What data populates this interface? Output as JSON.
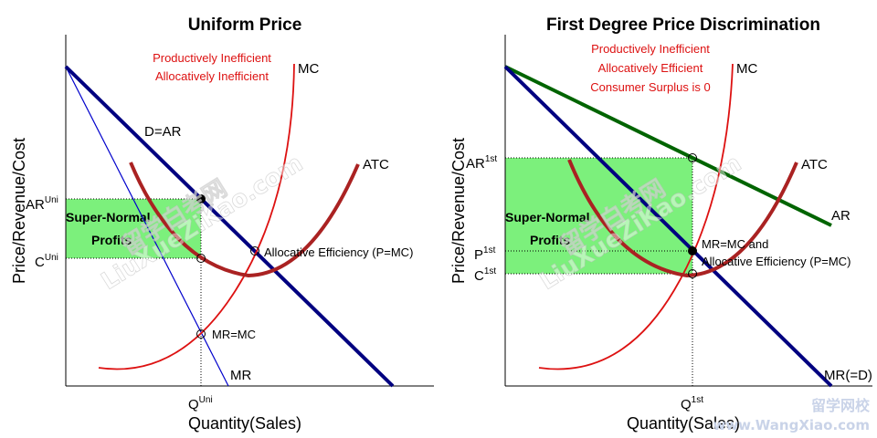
{
  "left": {
    "title": "Uniform Price",
    "x_axis_title": "Quantity(Sales)",
    "y_axis_title": "Price/Revenue/Cost",
    "annotations": {
      "line1": "Productively Inefficient",
      "line2": "Allocatively Inefficient"
    },
    "curves": {
      "mc": "MC",
      "atc": "ATC",
      "demand": "D=AR",
      "mr": "MR"
    },
    "profit_box": {
      "line1": "Super-Normal",
      "line2": "Profits"
    },
    "y_ticks": {
      "ar_main": "AR",
      "ar_sup": "Uni",
      "c_main": "C",
      "c_sup": "Uni"
    },
    "x_ticks": {
      "q_main": "Q",
      "q_sup": "Uni"
    },
    "points": {
      "allocative": "Allocative Efficiency (P=MC)",
      "mrmc": "MR=MC"
    }
  },
  "right": {
    "title": "First Degree Price Discrimination",
    "x_axis_title": "Quantity(Sales)",
    "y_axis_title": "Price/Revenue/Cost",
    "annotations": {
      "line1": "Productively Inefficient",
      "line2": "Allocatively Efficient",
      "line3": "Consumer Surplus is 0"
    },
    "curves": {
      "mc": "MC",
      "atc": "ATC",
      "ar": "AR",
      "mr": "MR(=D)"
    },
    "profit_box": {
      "line1": "Super-Normal",
      "line2": "Profits"
    },
    "y_ticks": {
      "ar_main": "AR",
      "ar_sup": "1st",
      "p_main": "P",
      "p_sup": "1st",
      "c_main": "C",
      "c_sup": "1st"
    },
    "x_ticks": {
      "q_main": "Q",
      "q_sup": "1st"
    },
    "points": {
      "mrmc_line1": "MR=MC and",
      "mrmc_line2": "Allocative Efficiency (P=MC)"
    }
  },
  "watermarks": {
    "site_cn": "留学网校",
    "site_url": "www.WangXiao.com",
    "diagonal_cn": "留学白考网",
    "diagonal_url": "LiuXueZiKao.com"
  },
  "colors": {
    "mc": "#dd1111",
    "atc": "#aa2222",
    "demand": "#000080",
    "mr": "#0000cc",
    "ar_right": "#006400",
    "profit": "#7cf07c"
  }
}
